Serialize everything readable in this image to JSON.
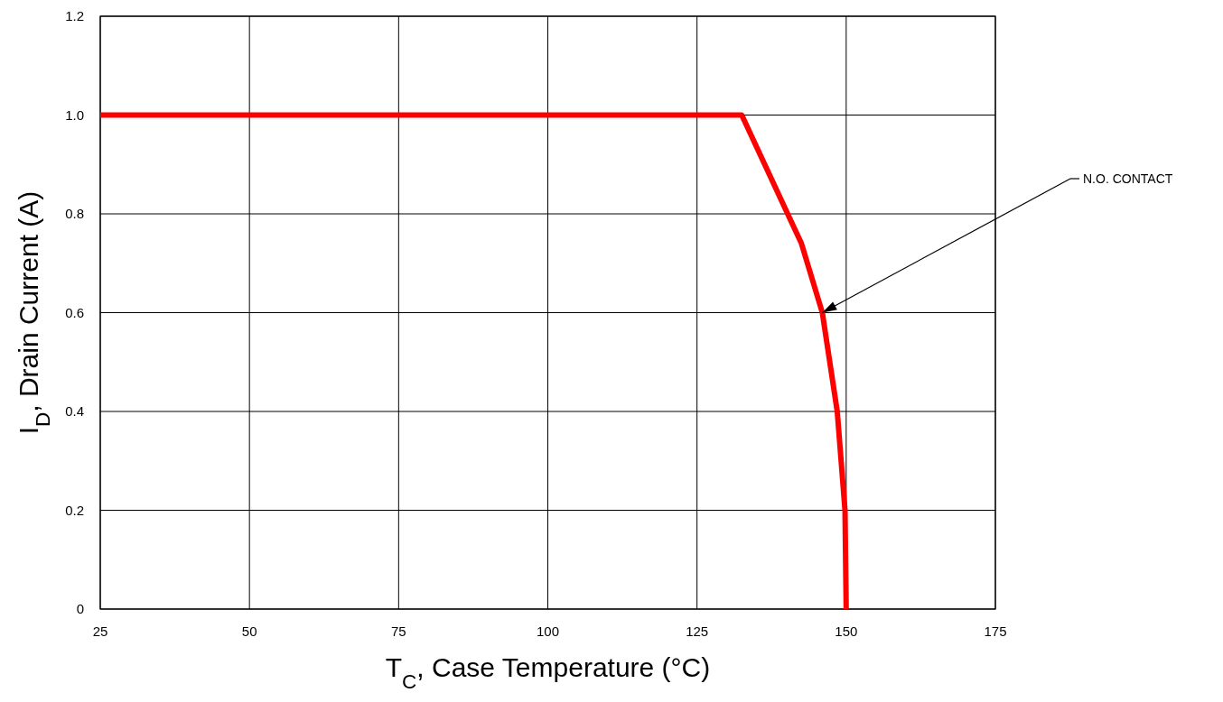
{
  "chart_data": {
    "type": "line",
    "xlabel": "T$_{C}$, Case Temperature (°C)",
    "ylabel": "I$_{D}$, Drain Current (A)",
    "x": [
      25,
      132.5,
      142.5,
      146,
      148.5,
      149.8,
      150
    ],
    "series": [
      {
        "color": "#ff0000",
        "values": [
          1.0,
          1.0,
          0.74,
          0.6,
          0.4,
          0.2,
          0
        ]
      }
    ],
    "xlim": [
      25,
      175
    ],
    "xticks": [
      25,
      50,
      75,
      100,
      125,
      150,
      175
    ],
    "ylim": [
      0,
      1.2
    ],
    "yticks": [
      0,
      {
        "value": 0.2,
        "label": "0.2"
      },
      {
        "value": 0.4,
        "label": "0.4"
      },
      {
        "value": 0.6,
        "label": "0.6"
      },
      {
        "value": 0.8,
        "label": "0.8"
      },
      {
        "value": 1,
        "label": "1.0"
      },
      {
        "value": 1.2,
        "label": "1.2"
      }
    ],
    "grid": true,
    "marker": "none",
    "line_style": "solid",
    "annotations": [
      {
        "text": "N.O. CONTACT",
        "x": 146,
        "y": 0.6
      }
    ]
  }
}
